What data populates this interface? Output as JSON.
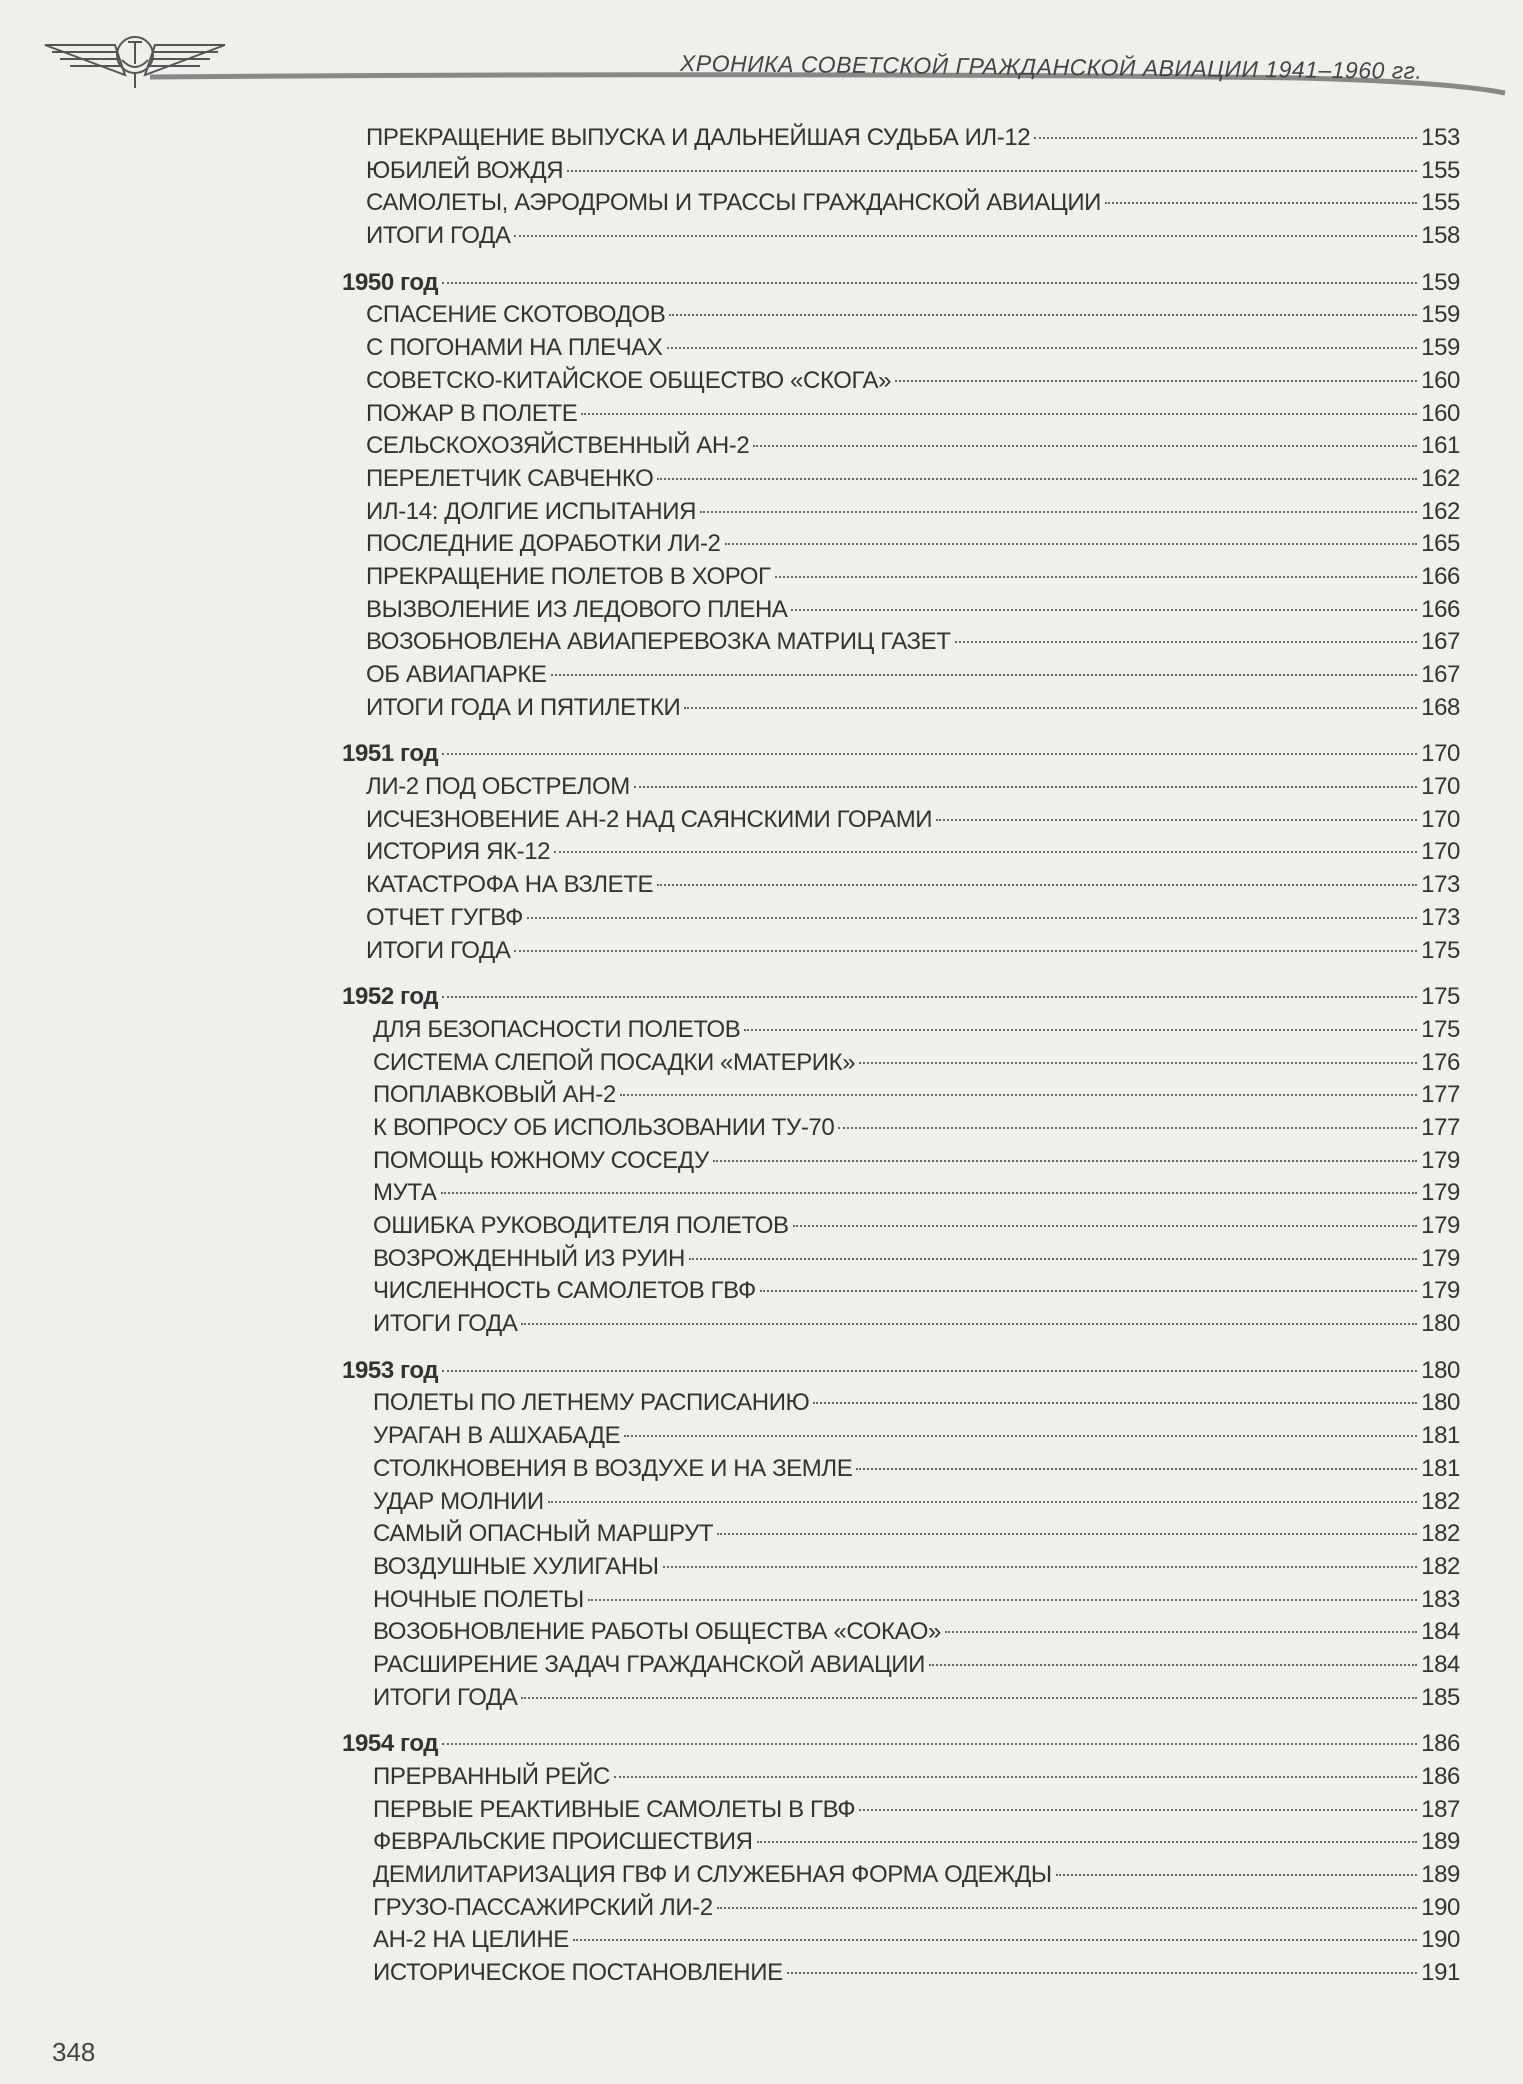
{
  "header": {
    "title": "ХРОНИКА СОВЕТСКОЙ ГРАЖДАНСКОЙ АВИАЦИИ 1941–1960 гг."
  },
  "page_number": "348",
  "sections": [
    {
      "year": null,
      "page": null,
      "entries": [
        {
          "title": "ПРЕКРАЩЕНИЕ ВЫПУСКА И ДАЛЬНЕЙШАЯ СУДЬБА ИЛ-12",
          "page": "153"
        },
        {
          "title": "ЮБИЛЕЙ ВОЖДЯ",
          "page": "155"
        },
        {
          "title": "САМОЛЕТЫ, АЭРОДРОМЫ И ТРАССЫ ГРАЖДАНСКОЙ АВИАЦИИ",
          "page": "155"
        },
        {
          "title": "ИТОГИ ГОДА",
          "page": "158"
        }
      ]
    },
    {
      "year": "1950 год",
      "page": "159",
      "entries": [
        {
          "title": "СПАСЕНИЕ СКОТОВОДОВ",
          "page": "159"
        },
        {
          "title": "С ПОГОНАМИ НА ПЛЕЧАХ",
          "page": "159"
        },
        {
          "title": "СОВЕТСКО-КИТАЙСКОЕ ОБЩЕСТВО «СКОГА»",
          "page": "160"
        },
        {
          "title": "ПОЖАР В ПОЛЕТЕ",
          "page": "160"
        },
        {
          "title": "СЕЛЬСКОХОЗЯЙСТВЕННЫЙ АН-2",
          "page": "161"
        },
        {
          "title": "ПЕРЕЛЕТЧИК САВЧЕНКО",
          "page": "162"
        },
        {
          "title": "ИЛ-14: ДОЛГИЕ ИСПЫТАНИЯ",
          "page": "162"
        },
        {
          "title": "ПОСЛЕДНИЕ ДОРАБОТКИ ЛИ-2",
          "page": "165"
        },
        {
          "title": "ПРЕКРАЩЕНИЕ ПОЛЕТОВ В ХОРОГ",
          "page": "166"
        },
        {
          "title": "ВЫЗВОЛЕНИЕ ИЗ ЛЕДОВОГО ПЛЕНА",
          "page": "166"
        },
        {
          "title": "ВОЗОБНОВЛЕНА АВИАПЕРЕВОЗКА МАТРИЦ ГАЗЕТ",
          "page": "167"
        },
        {
          "title": "ОБ АВИАПАРКЕ",
          "page": "167"
        },
        {
          "title": "ИТОГИ ГОДА И ПЯТИЛЕТКИ",
          "page": "168"
        }
      ]
    },
    {
      "year": "1951 год",
      "page": "170",
      "entries": [
        {
          "title": "ЛИ-2 ПОД ОБСТРЕЛОМ",
          "page": "170"
        },
        {
          "title": "ИСЧЕЗНОВЕНИЕ АН-2 НАД САЯНСКИМИ ГОРАМИ",
          "page": "170"
        },
        {
          "title": "ИСТОРИЯ ЯК-12",
          "page": "170"
        },
        {
          "title": "КАТАСТРОФА НА ВЗЛЕТЕ",
          "page": "173"
        },
        {
          "title": "ОТЧЕТ ГУГВФ",
          "page": "173"
        },
        {
          "title": "ИТОГИ ГОДА",
          "page": "175"
        }
      ]
    },
    {
      "year": "1952 год",
      "page": "175",
      "entries": [
        {
          "title": "ДЛЯ БЕЗОПАСНОСТИ ПОЛЕТОВ",
          "page": "175"
        },
        {
          "title": "СИСТЕМА СЛЕПОЙ ПОСАДКИ «МАТЕРИК»",
          "page": "176"
        },
        {
          "title": "ПОПЛАВКОВЫЙ АН-2",
          "page": "177"
        },
        {
          "title": "К ВОПРОСУ ОБ ИСПОЛЬЗОВАНИИ ТУ-70",
          "page": "177"
        },
        {
          "title": "ПОМОЩЬ ЮЖНОМУ СОСЕДУ",
          "page": "179"
        },
        {
          "title": "МУТА",
          "page": "179"
        },
        {
          "title": "ОШИБКА РУКОВОДИТЕЛЯ ПОЛЕТОВ",
          "page": "179"
        },
        {
          "title": "ВОЗРОЖДЕННЫЙ ИЗ РУИН",
          "page": "179"
        },
        {
          "title": "ЧИСЛЕННОСТЬ САМОЛЕТОВ ГВФ",
          "page": "179"
        },
        {
          "title": "ИТОГИ ГОДА",
          "page": "180"
        }
      ]
    },
    {
      "year": "1953 год",
      "page": "180",
      "entries": [
        {
          "title": "ПОЛЕТЫ ПО ЛЕТНЕМУ РАСПИСАНИЮ",
          "page": "180"
        },
        {
          "title": "УРАГАН В АШХАБАДЕ",
          "page": "181"
        },
        {
          "title": "СТОЛКНОВЕНИЯ В ВОЗДУХЕ И НА ЗЕМЛЕ",
          "page": "181"
        },
        {
          "title": "УДАР МОЛНИИ",
          "page": "182"
        },
        {
          "title": "САМЫЙ ОПАСНЫЙ МАРШРУТ",
          "page": "182"
        },
        {
          "title": "ВОЗДУШНЫЕ ХУЛИГАНЫ",
          "page": "182"
        },
        {
          "title": "НОЧНЫЕ ПОЛЕТЫ",
          "page": "183"
        },
        {
          "title": "ВОЗОБНОВЛЕНИЕ РАБОТЫ ОБЩЕСТВА «СОКАО»",
          "page": "184"
        },
        {
          "title": "РАСШИРЕНИЕ ЗАДАЧ ГРАЖДАНСКОЙ АВИАЦИИ",
          "page": "184"
        },
        {
          "title": "ИТОГИ ГОДА",
          "page": "185"
        }
      ]
    },
    {
      "year": "1954 год",
      "page": "186",
      "entries": [
        {
          "title": "ПРЕРВАННЫЙ РЕЙС",
          "page": "186"
        },
        {
          "title": "ПЕРВЫЕ РЕАКТИВНЫЕ САМОЛЕТЫ В ГВФ",
          "page": "187"
        },
        {
          "title": "ФЕВРАЛЬСКИЕ ПРОИСШЕСТВИЯ",
          "page": "189"
        },
        {
          "title": "ДЕМИЛИТАРИЗАЦИЯ ГВФ И СЛУЖЕБНАЯ ФОРМА ОДЕЖДЫ",
          "page": "189"
        },
        {
          "title": "ГРУЗО-ПАССАЖИРСКИЙ ЛИ-2",
          "page": "190"
        },
        {
          "title": "АН-2 НА ЦЕЛИНЕ",
          "page": "190"
        },
        {
          "title": "ИСТОРИЧЕСКОЕ ПОСТАНОВЛЕНИЕ",
          "page": "191"
        }
      ]
    }
  ]
}
